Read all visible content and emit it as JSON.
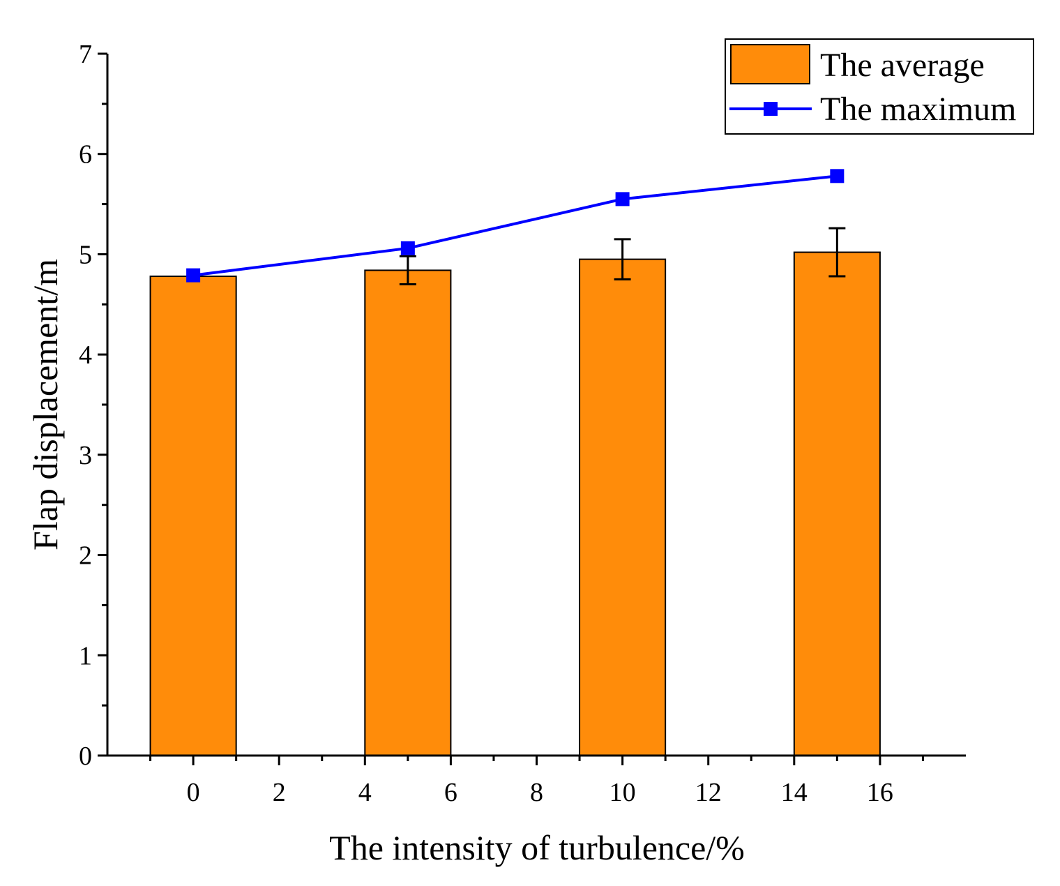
{
  "chart_data": {
    "type": "bar",
    "title": "",
    "xlabel": "The intensity of turbulence/%",
    "ylabel": "Flap displacement/m",
    "xlim": [
      -2,
      18
    ],
    "ylim": [
      0,
      7
    ],
    "xticks": [
      0,
      2,
      4,
      6,
      8,
      10,
      12,
      14,
      16
    ],
    "xtick_labels": [
      "0",
      "2",
      "4",
      "6",
      "8",
      "10",
      "12",
      "14",
      "16"
    ],
    "yticks": [
      0,
      1,
      2,
      3,
      4,
      5,
      6,
      7
    ],
    "ytick_labels": [
      "0",
      "1",
      "2",
      "3",
      "4",
      "5",
      "6",
      "7"
    ],
    "x": [
      0,
      5,
      10,
      15
    ],
    "bar_width": 2,
    "grid": false,
    "legend_position": "top-right",
    "series": [
      {
        "name": "The average",
        "type": "bar",
        "values": [
          4.78,
          4.84,
          4.95,
          5.02
        ],
        "error": [
          0.0,
          0.14,
          0.2,
          0.24
        ],
        "color": "#ff8c0a"
      },
      {
        "name": "The maximum",
        "type": "line",
        "marker": "square",
        "values": [
          4.79,
          5.06,
          5.55,
          5.78
        ],
        "color": "#0000ff"
      }
    ]
  }
}
